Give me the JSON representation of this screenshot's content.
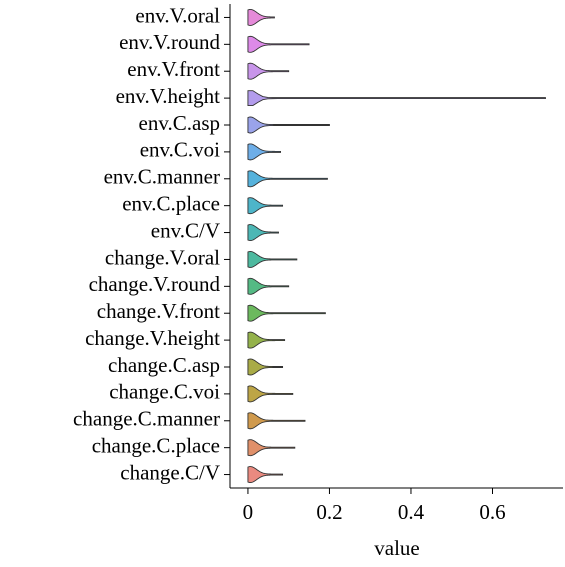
{
  "chart_data": {
    "type": "violin",
    "xlabel": "value",
    "categories": [
      "env.V.oral",
      "env.V.round",
      "env.V.front",
      "env.V.height",
      "env.C.asp",
      "env.C.voi",
      "env.C.manner",
      "env.C.place",
      "env.C/V",
      "change.V.oral",
      "change.V.round",
      "change.V.front",
      "change.V.height",
      "change.C.asp",
      "change.C.voi",
      "change.C.manner",
      "change.C.place",
      "change.C/V"
    ],
    "values": [
      0.065,
      0.15,
      0.1,
      0.73,
      0.2,
      0.08,
      0.195,
      0.085,
      0.075,
      0.12,
      0.1,
      0.19,
      0.09,
      0.085,
      0.11,
      0.14,
      0.115,
      0.085
    ],
    "colors": [
      "#e58ad9",
      "#dd8ae8",
      "#c895ea",
      "#b39cec",
      "#9aa3eb",
      "#6eaee8",
      "#55b2dc",
      "#4db5c9",
      "#4cb7b5",
      "#4db99f",
      "#54ba84",
      "#6cb95e",
      "#94b24b",
      "#a9ab47",
      "#bda546",
      "#d09a4d",
      "#e0906a",
      "#ea8a80"
    ],
    "xlim": [
      -0.044,
      0.773
    ],
    "xticks": [
      0,
      0.2,
      0.4,
      0.6
    ]
  }
}
